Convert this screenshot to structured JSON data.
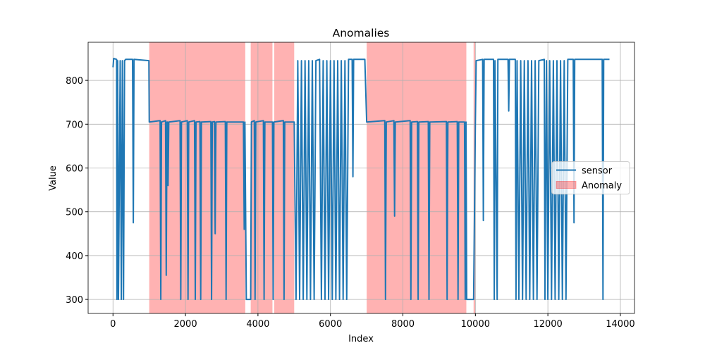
{
  "chart_data": {
    "type": "line",
    "title": "Anomalies",
    "xlabel": "Index",
    "ylabel": "Value",
    "x": [
      0,
      20,
      100,
      110,
      130,
      150,
      200,
      230,
      260,
      290,
      320,
      350,
      540,
      560,
      580,
      990,
      1000,
      1300,
      1320,
      1340,
      1450,
      1470,
      1490,
      1500,
      1520,
      1540,
      1850,
      1870,
      1890,
      2050,
      2070,
      2090,
      2250,
      2270,
      2290,
      2400,
      2420,
      2440,
      2700,
      2720,
      2740,
      2800,
      2820,
      2840,
      3100,
      3120,
      3140,
      3600,
      3620,
      3640,
      3680,
      3800,
      3820,
      3900,
      3920,
      3940,
      4150,
      4170,
      4190,
      4400,
      4420,
      4440,
      4700,
      4720,
      4740,
      5000,
      5050,
      5100,
      5150,
      5200,
      5250,
      5300,
      5350,
      5400,
      5450,
      5500,
      5550,
      5600,
      5700,
      5750,
      5800,
      5850,
      5900,
      5950,
      6000,
      6050,
      6100,
      6150,
      6200,
      6250,
      6300,
      6350,
      6400,
      6450,
      6500,
      6600,
      6620,
      6640,
      6950,
      7000,
      7500,
      7520,
      7540,
      7750,
      7770,
      7790,
      8200,
      8220,
      8240,
      8400,
      8420,
      8440,
      8700,
      8720,
      8740,
      9200,
      9220,
      9240,
      9500,
      9520,
      9540,
      9700,
      9720,
      9740,
      9760,
      9950,
      10000,
      10020,
      10200,
      10220,
      10240,
      10500,
      10520,
      10540,
      10600,
      10620,
      10900,
      10920,
      10940,
      11100,
      11120,
      11150,
      11200,
      11250,
      11300,
      11350,
      11400,
      11450,
      11500,
      11550,
      11600,
      11650,
      11700,
      11750,
      11900,
      11920,
      11960,
      12000,
      12050,
      12100,
      12150,
      12200,
      12250,
      12300,
      12350,
      12400,
      12450,
      12500,
      12550,
      12700,
      12720,
      12740,
      13500,
      13520,
      13540,
      13700
    ],
    "series": [
      {
        "name": "sensor",
        "color": "#1f77b4",
        "values": [
          830,
          850,
          848,
          300,
          845,
          300,
          845,
          300,
          845,
          300,
          845,
          848,
          848,
          475,
          848,
          845,
          705,
          708,
          300,
          705,
          708,
          355,
          705,
          705,
          560,
          705,
          708,
          300,
          705,
          708,
          300,
          705,
          708,
          300,
          705,
          706,
          300,
          705,
          706,
          300,
          705,
          706,
          450,
          705,
          706,
          300,
          705,
          705,
          460,
          705,
          300,
          300,
          705,
          708,
          300,
          705,
          708,
          300,
          705,
          705,
          300,
          705,
          708,
          300,
          705,
          705,
          300,
          845,
          300,
          845,
          300,
          845,
          300,
          845,
          300,
          845,
          300,
          845,
          848,
          300,
          845,
          300,
          845,
          300,
          845,
          300,
          845,
          300,
          845,
          300,
          845,
          300,
          845,
          300,
          848,
          848,
          580,
          848,
          848,
          705,
          708,
          300,
          705,
          708,
          490,
          705,
          708,
          300,
          705,
          706,
          300,
          705,
          706,
          300,
          705,
          706,
          300,
          705,
          706,
          300,
          705,
          705,
          300,
          705,
          300,
          300,
          705,
          845,
          848,
          480,
          848,
          848,
          300,
          845,
          300,
          848,
          848,
          730,
          848,
          848,
          300,
          845,
          300,
          845,
          300,
          845,
          300,
          845,
          300,
          845,
          300,
          845,
          300,
          845,
          848,
          300,
          845,
          300,
          845,
          300,
          845,
          300,
          845,
          300,
          845,
          300,
          845,
          300,
          848,
          848,
          475,
          848,
          848,
          300,
          848,
          848
        ]
      }
    ],
    "shaded": {
      "name": "Anomaly",
      "color": "#ff0000",
      "alpha": 0.3,
      "ranges": [
        [
          1000,
          3650
        ],
        [
          3800,
          4400
        ],
        [
          4450,
          5000
        ],
        [
          7000,
          9750
        ],
        [
          9950,
          10000
        ]
      ]
    },
    "xlim": [
      -686,
      14390
    ],
    "ylim": [
      268,
      887
    ],
    "xticks": [
      0,
      2000,
      4000,
      6000,
      8000,
      10000,
      12000,
      14000
    ],
    "yticks": [
      300,
      400,
      500,
      600,
      700,
      800
    ],
    "grid": true,
    "legend": "center right"
  }
}
